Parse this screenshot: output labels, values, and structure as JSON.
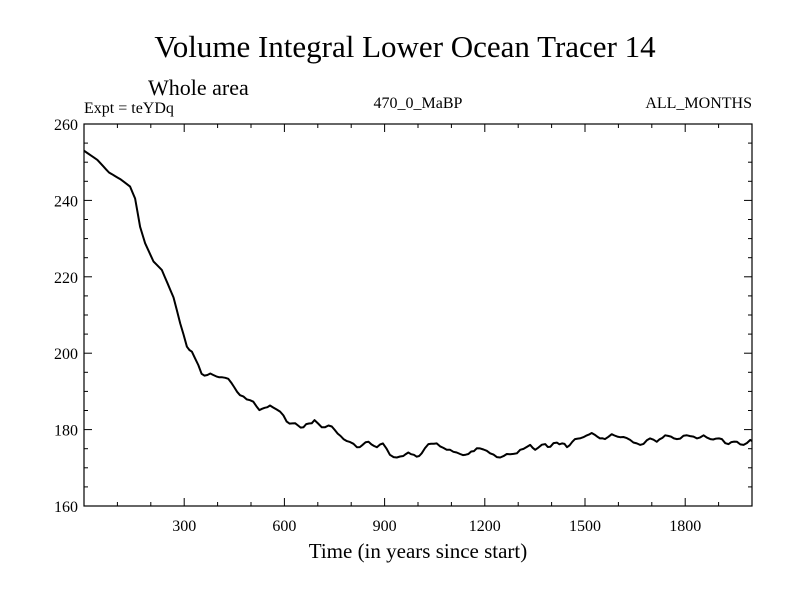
{
  "chart_data": {
    "type": "line",
    "title": "Volume Integral Lower Ocean Tracer 14",
    "subtitle": "Whole area",
    "annotations": {
      "left": "Expt = teYDq",
      "center": "470_0_MaBP",
      "right": "ALL_MONTHS"
    },
    "xlabel": "Time (in years since start)",
    "ylabel": "",
    "xlim": [
      0,
      2000
    ],
    "ylim": [
      160,
      260
    ],
    "x_ticks": [
      300,
      600,
      900,
      1200,
      1500,
      1800
    ],
    "x_tick_labels": [
      "300",
      "600",
      "900",
      "1200",
      "1500",
      "1800"
    ],
    "x_minor_step": 100,
    "y_ticks": [
      160,
      180,
      200,
      220,
      240,
      260
    ],
    "y_tick_labels": [
      "160",
      "180",
      "200",
      "220",
      "240",
      "260"
    ],
    "y_minor_step": 5,
    "grid": false,
    "legend": "none",
    "series": [
      {
        "name": "Lower Ocean Tracer 14",
        "color": "#000000",
        "x": [
          0,
          40,
          75,
          110,
          138,
          153,
          168,
          183,
          208,
          233,
          268,
          288,
          308,
          323,
          352,
          387,
          432,
          467,
          487,
          507,
          525,
          557,
          587,
          607,
          657,
          690,
          712,
          742,
          777,
          817,
          852,
          877,
          895,
          916,
          927,
          956,
          971,
          996,
          1011,
          1031,
          1056,
          1086,
          1126,
          1151,
          1176,
          1196,
          1236,
          1266,
          1296,
          1336,
          1351,
          1381,
          1396,
          1416,
          1431,
          1446,
          1470,
          1495,
          1520,
          1545,
          1560,
          1580,
          1605,
          1635,
          1665,
          1695,
          1715,
          1740,
          1775,
          1805,
          1835,
          1855,
          1875,
          1910,
          1930,
          1955,
          1975,
          1995,
          2000
        ],
        "values": [
          253.0,
          250.6,
          247.3,
          245.5,
          243.6,
          240.5,
          233.1,
          228.8,
          224.0,
          221.8,
          214.6,
          207.8,
          201.7,
          200.4,
          194.6,
          194.3,
          193.3,
          189.0,
          187.9,
          187.3,
          185.1,
          186.3,
          184.7,
          182.1,
          180.6,
          182.5,
          180.6,
          180.8,
          177.5,
          175.4,
          176.8,
          175.4,
          176.4,
          173.4,
          172.8,
          173.1,
          174.0,
          172.9,
          173.8,
          176.2,
          176.4,
          174.7,
          173.6,
          173.6,
          175.1,
          174.8,
          172.8,
          173.6,
          173.8,
          176.0,
          174.7,
          176.2,
          175.5,
          176.6,
          176.4,
          175.4,
          177.5,
          178.0,
          179.1,
          177.7,
          177.5,
          178.8,
          178.0,
          177.3,
          176.0,
          177.7,
          176.8,
          178.5,
          177.5,
          178.5,
          177.7,
          178.5,
          177.5,
          177.5,
          176.2,
          176.8,
          176.0,
          177.3,
          177.0
        ]
      }
    ]
  }
}
